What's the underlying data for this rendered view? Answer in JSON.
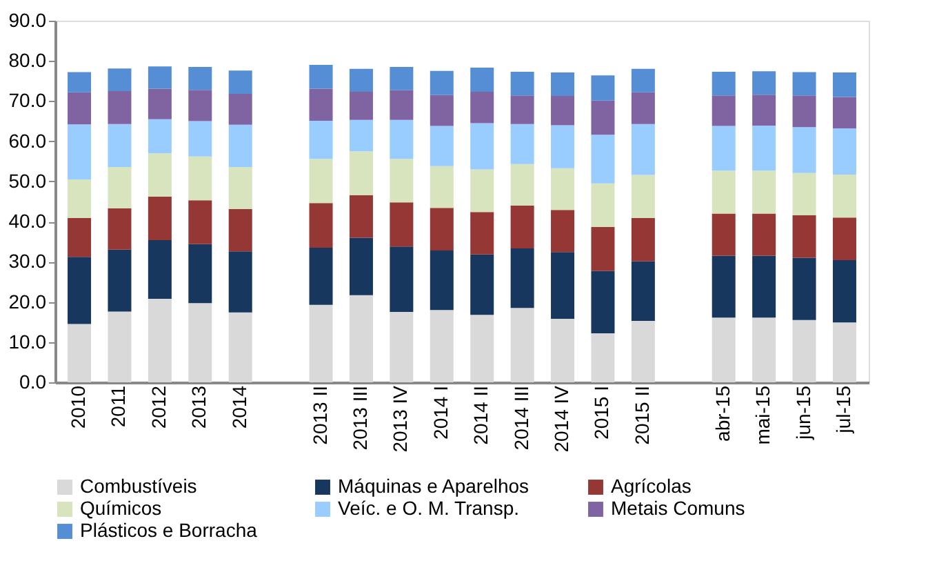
{
  "chart_data": {
    "type": "bar",
    "stacked": true,
    "legend": "bottom",
    "grid": false,
    "categories": [
      "2010",
      "2011",
      "2012",
      "2013",
      "2014",
      null,
      "2013 II",
      "2013 III",
      "2013 IV",
      "2014 I",
      "2014 II",
      "2014 III",
      "2014 IV",
      "2015 I",
      "2015 II",
      null,
      "abr-15",
      "mai-15",
      "jun-15",
      "jul-15"
    ],
    "ylim": [
      0,
      90
    ],
    "yticks": [
      {
        "value": 0,
        "label": "0.0"
      },
      {
        "value": 10,
        "label": "10.0"
      },
      {
        "value": 20,
        "label": "20.0"
      },
      {
        "value": 30,
        "label": "30.0"
      },
      {
        "value": 40,
        "label": "40.0"
      },
      {
        "value": 50,
        "label": "50.0"
      },
      {
        "value": 60,
        "label": "60.0"
      },
      {
        "value": 70,
        "label": "70.0"
      },
      {
        "value": 80,
        "label": "80.0"
      },
      {
        "value": 90,
        "label": "90.0"
      }
    ],
    "series": [
      {
        "name": "Combustíveis",
        "color": "#d9d9d9",
        "values": [
          14.5,
          17.6,
          20.8,
          19.7,
          17.4,
          null,
          19.3,
          21.7,
          17.5,
          18.0,
          16.8,
          18.5,
          15.8,
          12.2,
          15.3,
          null,
          16.1,
          16.1,
          15.5,
          14.9
        ]
      },
      {
        "name": "Máquinas e Aparelhos",
        "color": "#17375e",
        "values": [
          16.7,
          15.4,
          14.6,
          14.7,
          15.2,
          null,
          14.2,
          14.3,
          16.3,
          14.8,
          15.0,
          14.8,
          16.6,
          15.5,
          14.8,
          null,
          15.4,
          15.4,
          15.5,
          15.5
        ]
      },
      {
        "name": "Agrícolas",
        "color": "#953735",
        "values": [
          9.7,
          10.3,
          10.8,
          10.9,
          10.5,
          null,
          11.1,
          10.6,
          11.0,
          10.6,
          10.6,
          10.7,
          10.5,
          11.0,
          10.8,
          null,
          10.5,
          10.5,
          10.6,
          10.6
        ]
      },
      {
        "name": "Químicos",
        "color": "#d7e4bd",
        "values": [
          9.6,
          10.3,
          10.8,
          10.9,
          10.5,
          null,
          11.0,
          10.9,
          10.8,
          10.4,
          10.6,
          10.3,
          10.4,
          10.8,
          10.7,
          null,
          10.7,
          10.7,
          10.5,
          10.7
        ]
      },
      {
        "name": "Veíc. e O. M. Transp.",
        "color": "#99ccff",
        "values": [
          13.7,
          10.7,
          8.5,
          8.8,
          10.5,
          null,
          9.5,
          7.8,
          9.7,
          10.0,
          11.5,
          10.0,
          10.7,
          12.1,
          12.7,
          null,
          11.1,
          11.2,
          11.4,
          11.5
        ]
      },
      {
        "name": "Metais Comuns",
        "color": "#8064a2",
        "values": [
          8.0,
          8.2,
          7.6,
          7.8,
          7.7,
          null,
          8.0,
          7.0,
          7.4,
          7.7,
          7.8,
          7.1,
          7.3,
          8.5,
          7.9,
          null,
          7.6,
          7.7,
          7.9,
          7.8
        ]
      },
      {
        "name": "Plásticos e Borracha",
        "color": "#558ed5",
        "values": [
          5.0,
          5.6,
          5.5,
          5.7,
          5.8,
          null,
          5.9,
          5.7,
          5.8,
          6.0,
          6.0,
          5.9,
          5.8,
          6.3,
          5.8,
          null,
          5.9,
          5.8,
          5.8,
          6.1
        ]
      }
    ]
  }
}
